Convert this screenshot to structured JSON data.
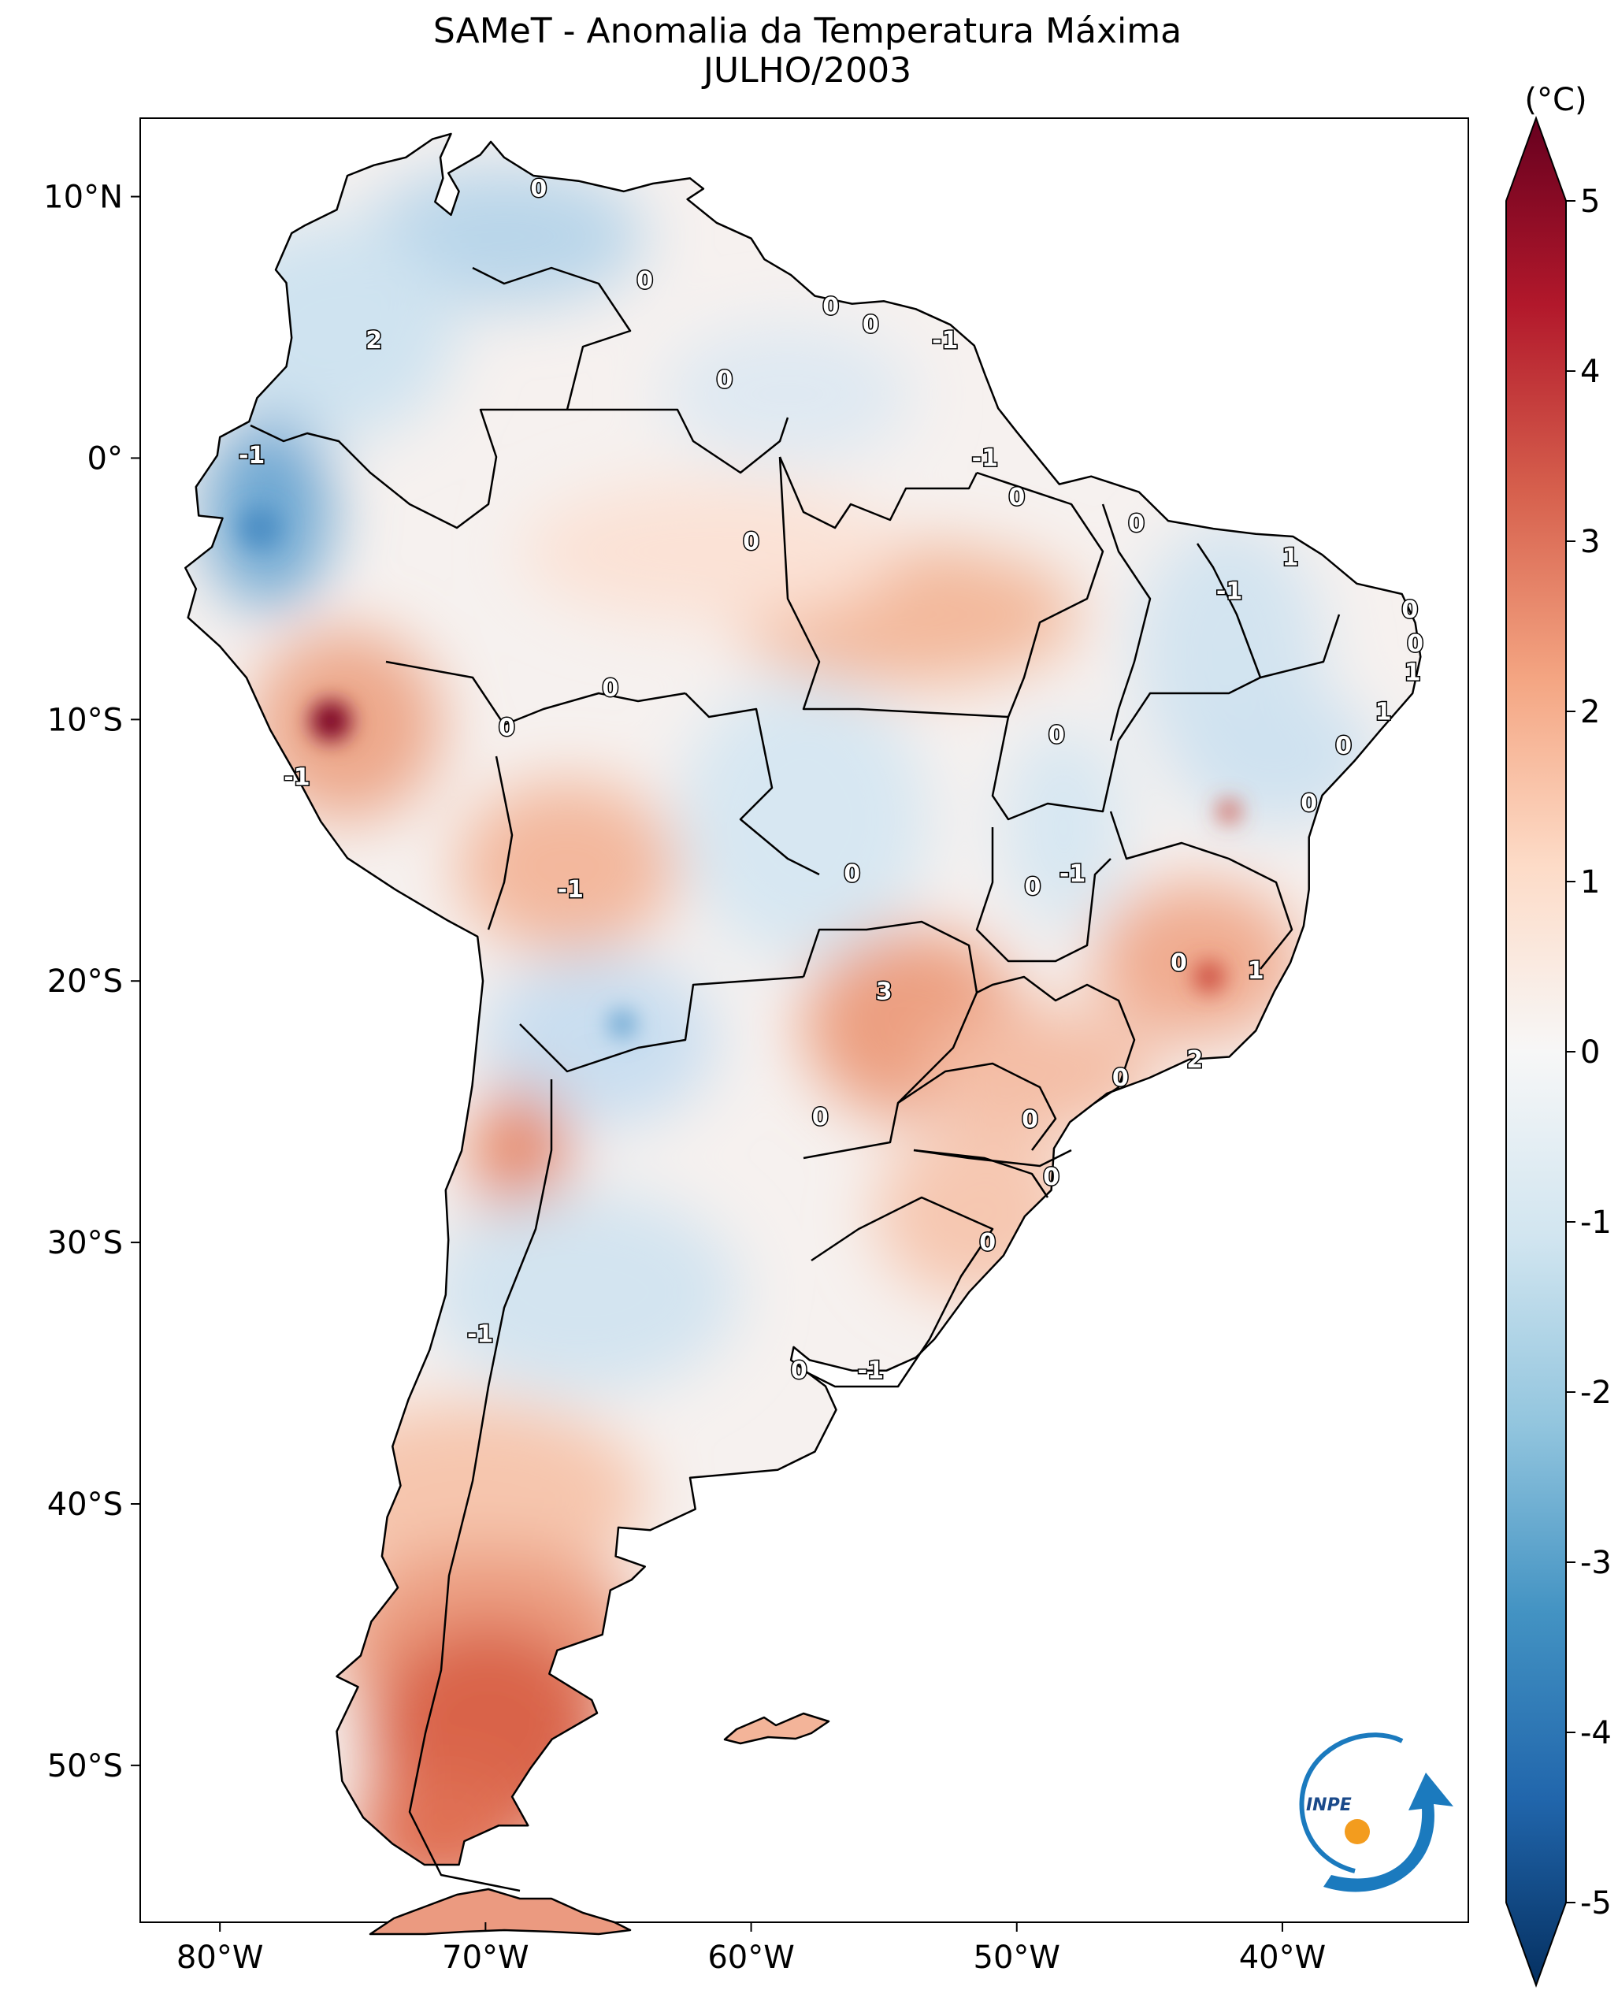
{
  "title": "SAMeT - Anomalia da Temperatura Máxima",
  "subtitle": "JULHO/2003",
  "colorbar": {
    "unit_label": "(°C)",
    "ticks": [
      "5",
      "4",
      "3",
      "2",
      "1",
      "0",
      "-1",
      "-2",
      "-3",
      "-4",
      "-5"
    ],
    "range": [
      -5,
      5
    ],
    "colormap": "RdBu_r",
    "colors": [
      "#053061",
      "#2166ac",
      "#4393c3",
      "#92c5de",
      "#d1e5f0",
      "#f7f7f7",
      "#fddbc7",
      "#f4a582",
      "#d6604d",
      "#b2182b",
      "#67001f"
    ]
  },
  "axes": {
    "lon_ticks": [
      "80°W",
      "70°W",
      "60°W",
      "50°W",
      "40°W"
    ],
    "lat_ticks": [
      "10°N",
      "0°",
      "10°S",
      "20°S",
      "30°S",
      "40°S",
      "50°S"
    ],
    "lon_range": [
      -83,
      -33
    ],
    "lat_range": [
      -56,
      13
    ]
  },
  "logo_text": "INPE",
  "contour_labels": [
    {
      "text": "0",
      "lon": -68,
      "lat": 10.3
    },
    {
      "text": "2",
      "lon": -74.2,
      "lat": 4.5
    },
    {
      "text": "0",
      "lon": -64,
      "lat": 6.8
    },
    {
      "text": "0",
      "lon": -61,
      "lat": 3.0
    },
    {
      "text": "0",
      "lon": -57,
      "lat": 5.8
    },
    {
      "text": "0",
      "lon": -55.5,
      "lat": 5.1
    },
    {
      "text": "-1",
      "lon": -52.7,
      "lat": 4.5
    },
    {
      "text": "-1",
      "lon": -51.2,
      "lat": 0.0
    },
    {
      "text": "0",
      "lon": -50,
      "lat": -1.5
    },
    {
      "text": "0",
      "lon": -45.5,
      "lat": -2.5
    },
    {
      "text": "1",
      "lon": -39.7,
      "lat": -3.8
    },
    {
      "text": "-1",
      "lon": -42,
      "lat": -5.1
    },
    {
      "text": "0",
      "lon": -35.2,
      "lat": -5.8
    },
    {
      "text": "0",
      "lon": -35,
      "lat": -7.1
    },
    {
      "text": "1",
      "lon": -35.1,
      "lat": -8.2
    },
    {
      "text": "1",
      "lon": -36.2,
      "lat": -9.7
    },
    {
      "text": "0",
      "lon": -37.7,
      "lat": -11.0
    },
    {
      "text": "0",
      "lon": -39,
      "lat": -13.2
    },
    {
      "text": "-1",
      "lon": -78.8,
      "lat": 0.1
    },
    {
      "text": "0",
      "lon": -60,
      "lat": -3.2
    },
    {
      "text": "0",
      "lon": -65.3,
      "lat": -8.8
    },
    {
      "text": "0",
      "lon": -69.2,
      "lat": -10.3
    },
    {
      "text": "-1",
      "lon": -77.1,
      "lat": -12.2
    },
    {
      "text": "0",
      "lon": -48.5,
      "lat": -10.6
    },
    {
      "text": "-1",
      "lon": -66.8,
      "lat": -16.5
    },
    {
      "text": "0",
      "lon": -56.2,
      "lat": -15.9
    },
    {
      "text": "-1",
      "lon": -47.9,
      "lat": -15.9
    },
    {
      "text": "0",
      "lon": -49.4,
      "lat": -16.4
    },
    {
      "text": "0",
      "lon": -43.9,
      "lat": -19.3
    },
    {
      "text": "1",
      "lon": -41,
      "lat": -19.6
    },
    {
      "text": "3",
      "lon": -55,
      "lat": -20.4
    },
    {
      "text": "2",
      "lon": -43.3,
      "lat": -23.0
    },
    {
      "text": "0",
      "lon": -46.1,
      "lat": -23.7
    },
    {
      "text": "0",
      "lon": -57.4,
      "lat": -25.2
    },
    {
      "text": "0",
      "lon": -49.5,
      "lat": -25.3
    },
    {
      "text": "0",
      "lon": -48.7,
      "lat": -27.5
    },
    {
      "text": "0",
      "lon": -51.1,
      "lat": -30.0
    },
    {
      "text": "-1",
      "lon": -70.2,
      "lat": -33.5
    },
    {
      "text": "0",
      "lon": -58.2,
      "lat": -34.9
    },
    {
      "text": "-1",
      "lon": -55.5,
      "lat": -34.9
    }
  ]
}
